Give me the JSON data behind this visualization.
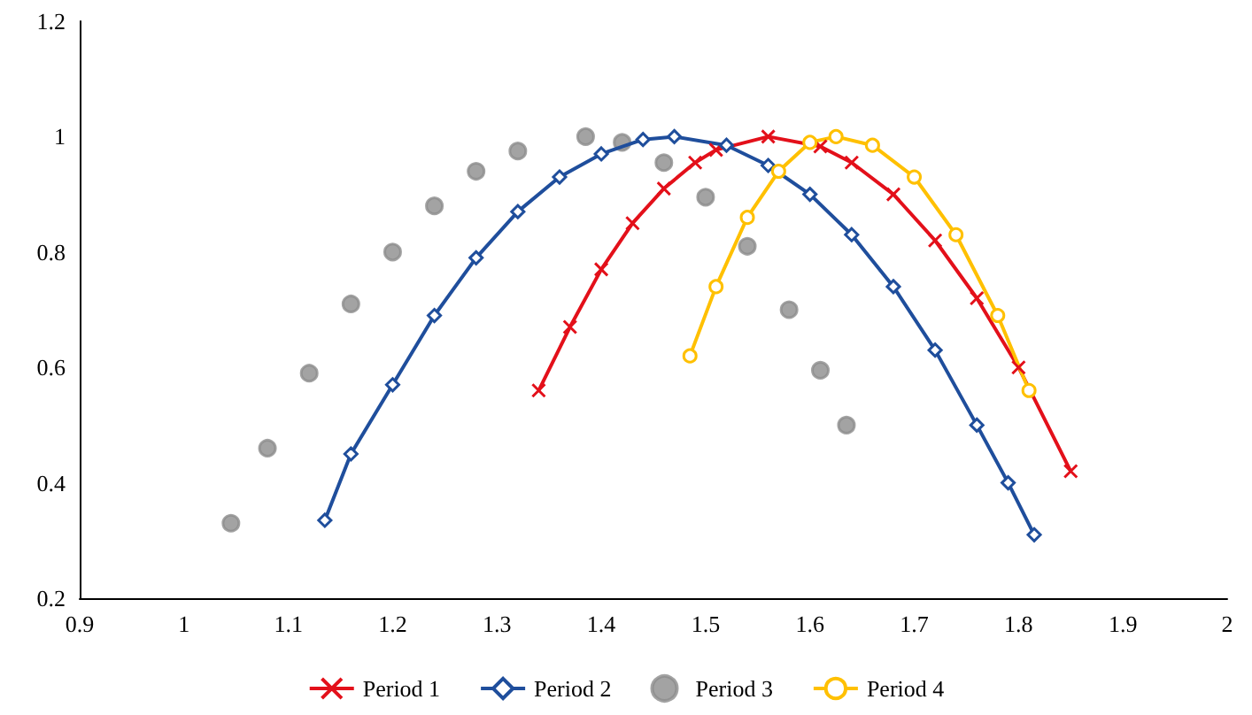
{
  "chart_data": {
    "type": "line",
    "xlim": [
      0.9,
      2
    ],
    "xticks": [
      0.9,
      1,
      1.1,
      1.2,
      1.3,
      1.4,
      1.5,
      1.6,
      1.7,
      1.8,
      1.9,
      2
    ],
    "ylim": [
      0.2,
      1.2
    ],
    "yticks": [
      0.2,
      0.4,
      0.6,
      0.8,
      1,
      1.2
    ],
    "grid": false,
    "legend": "bottom",
    "line_style": "solid",
    "series": [
      {
        "name": "Period 1",
        "color": "#e3101a",
        "marker": "cross",
        "x": [
          1.34,
          1.37,
          1.4,
          1.43,
          1.46,
          1.49,
          1.51,
          1.56,
          1.61,
          1.64,
          1.68,
          1.72,
          1.76,
          1.8,
          1.85
        ],
        "values": [
          0.56,
          0.67,
          0.77,
          0.85,
          0.91,
          0.955,
          0.977,
          1.0,
          0.983,
          0.955,
          0.9,
          0.82,
          0.72,
          0.6,
          0.42
        ]
      },
      {
        "name": "Period 2",
        "color": "#1f4e9c",
        "marker": "diamond",
        "x": [
          1.135,
          1.16,
          1.2,
          1.24,
          1.28,
          1.32,
          1.36,
          1.4,
          1.44,
          1.47,
          1.52,
          1.56,
          1.6,
          1.64,
          1.68,
          1.72,
          1.76,
          1.79,
          1.815
        ],
        "values": [
          0.335,
          0.45,
          0.57,
          0.69,
          0.79,
          0.87,
          0.93,
          0.97,
          0.995,
          1.0,
          0.985,
          0.95,
          0.9,
          0.83,
          0.74,
          0.63,
          0.5,
          0.4,
          0.31
        ]
      },
      {
        "name": "Period 3",
        "color": "#8c8c8c",
        "type": "scatter",
        "marker": "circle",
        "x": [
          1.045,
          1.08,
          1.12,
          1.16,
          1.2,
          1.24,
          1.28,
          1.32,
          1.385,
          1.42,
          1.46,
          1.5,
          1.54,
          1.58,
          1.61,
          1.635
        ],
        "values": [
          0.33,
          0.46,
          0.59,
          0.71,
          0.8,
          0.88,
          0.94,
          0.975,
          1.0,
          0.99,
          0.955,
          0.895,
          0.81,
          0.7,
          0.595,
          0.5
        ]
      },
      {
        "name": "Period 4",
        "color": "#ffc000",
        "marker": "circle-open",
        "x": [
          1.485,
          1.51,
          1.54,
          1.57,
          1.6,
          1.625,
          1.66,
          1.7,
          1.74,
          1.78,
          1.81
        ],
        "values": [
          0.62,
          0.74,
          0.86,
          0.94,
          0.99,
          1.0,
          0.985,
          0.93,
          0.83,
          0.69,
          0.56
        ]
      }
    ]
  }
}
